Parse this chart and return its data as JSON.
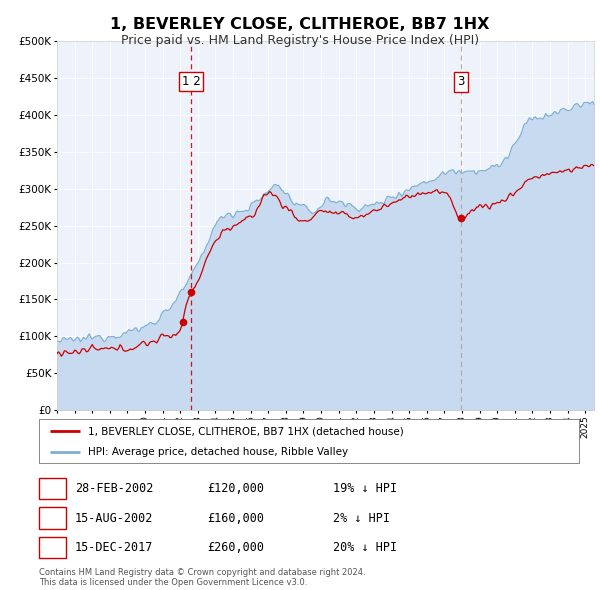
{
  "title": "1, BEVERLEY CLOSE, CLITHEROE, BB7 1HX",
  "subtitle": "Price paid vs. HM Land Registry's House Price Index (HPI)",
  "background_color": "#ffffff",
  "plot_bg_color": "#eef2fa",
  "ylim": [
    0,
    500000
  ],
  "yticks": [
    0,
    50000,
    100000,
    150000,
    200000,
    250000,
    300000,
    350000,
    400000,
    450000,
    500000
  ],
  "ytick_labels": [
    "£0",
    "£50K",
    "£100K",
    "£150K",
    "£200K",
    "£250K",
    "£300K",
    "£350K",
    "£400K",
    "£450K",
    "£500K"
  ],
  "xmin_year": 1995.0,
  "xmax_year": 2025.5,
  "xtick_years": [
    1995,
    1996,
    1997,
    1998,
    1999,
    2000,
    2001,
    2002,
    2003,
    2004,
    2005,
    2006,
    2007,
    2008,
    2009,
    2010,
    2011,
    2012,
    2013,
    2014,
    2015,
    2016,
    2017,
    2018,
    2019,
    2020,
    2021,
    2022,
    2023,
    2024,
    2025
  ],
  "red_line_color": "#cc0000",
  "blue_line_color": "#7aafd4",
  "blue_fill_color": "#c8daf0",
  "vline1_color": "#cc0000",
  "vline2_color": "#aaaaaa",
  "sale_dates": [
    2002.13,
    2002.62,
    2017.96
  ],
  "sale_prices": [
    120000,
    160000,
    260000
  ],
  "vline_x1": 2002.62,
  "vline_x2": 2017.96,
  "legend_line1": "1, BEVERLEY CLOSE, CLITHEROE, BB7 1HX (detached house)",
  "legend_line2": "HPI: Average price, detached house, Ribble Valley",
  "table_rows": [
    {
      "num": "1",
      "date": "28-FEB-2002",
      "price": "£120,000",
      "hpi": "19% ↓ HPI"
    },
    {
      "num": "2",
      "date": "15-AUG-2002",
      "price": "£160,000",
      "hpi": "2% ↓ HPI"
    },
    {
      "num": "3",
      "date": "15-DEC-2017",
      "price": "£260,000",
      "hpi": "20% ↓ HPI"
    }
  ],
  "footer": "Contains HM Land Registry data © Crown copyright and database right 2024.\nThis data is licensed under the Open Government Licence v3.0."
}
